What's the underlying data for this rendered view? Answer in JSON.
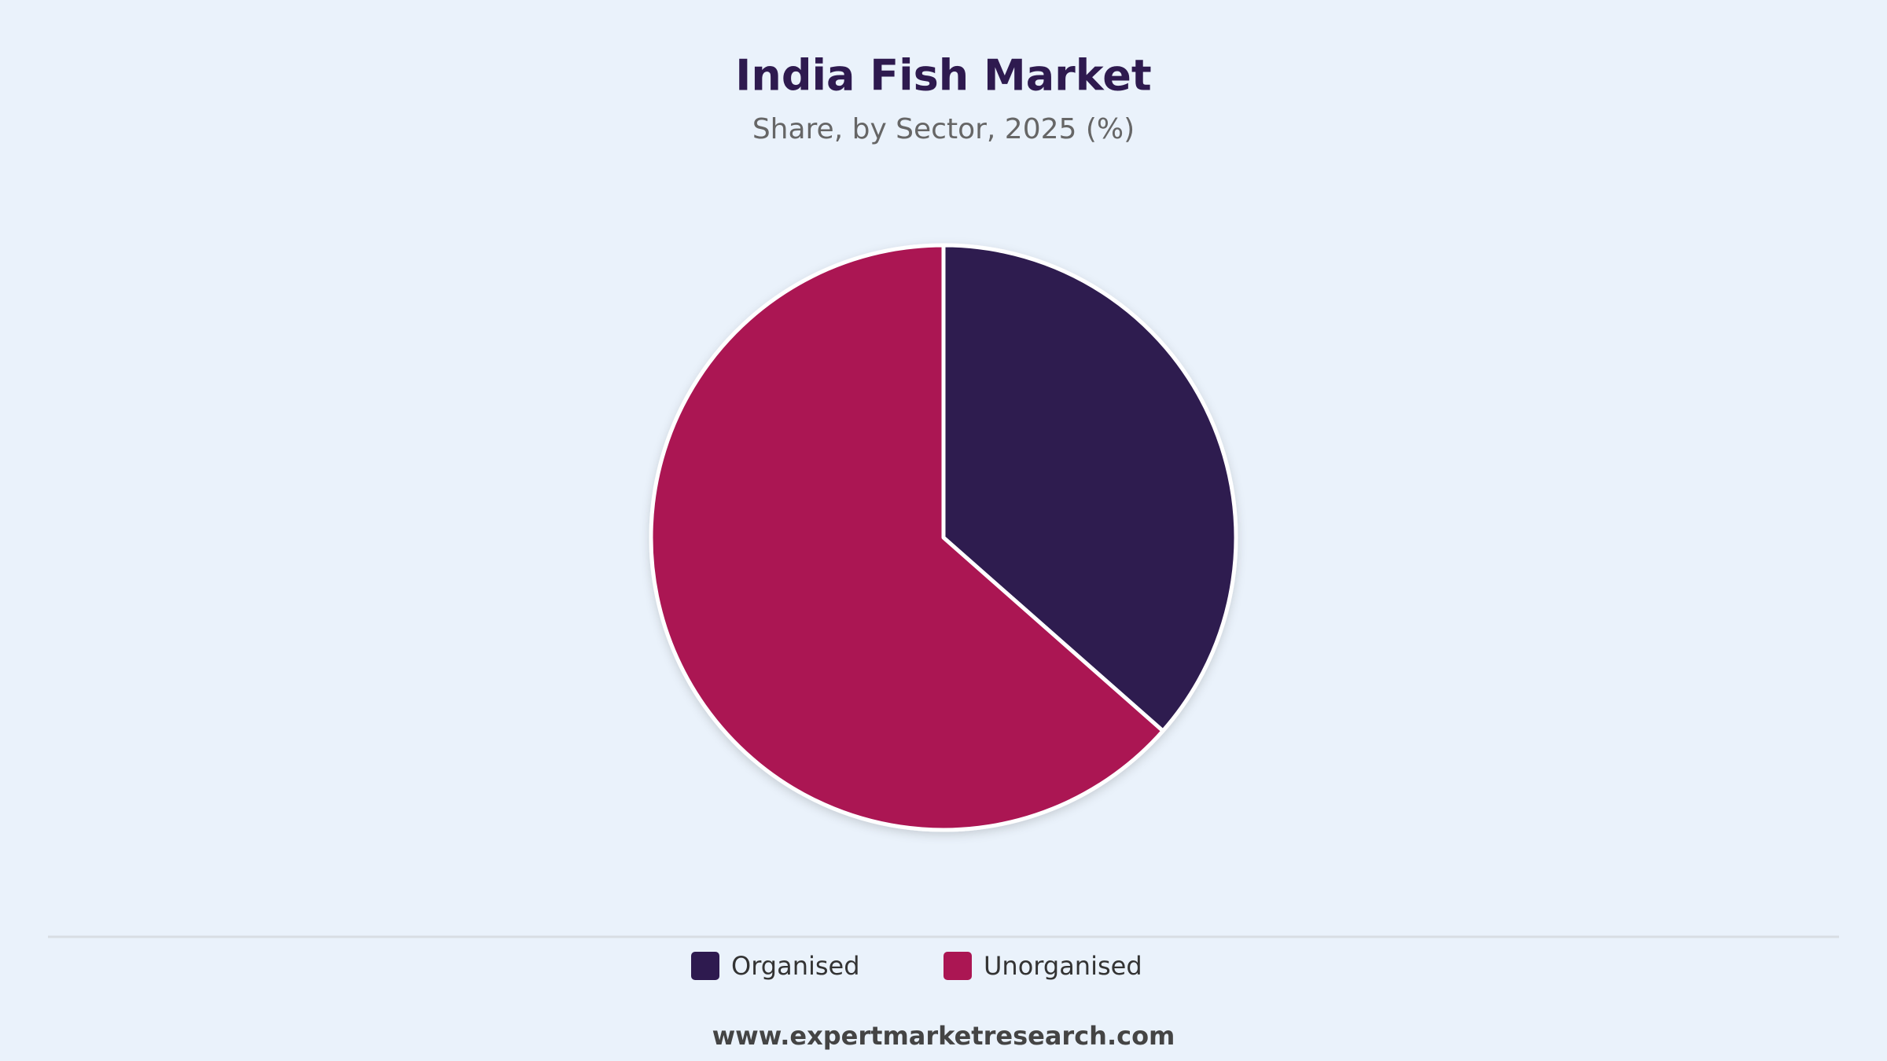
{
  "chart_data": {
    "type": "pie",
    "title": "India Fish Market",
    "subtitle": "Share, by Sector, 2025 (%)",
    "categories": [
      "Organised",
      "Unorganised"
    ],
    "values": [
      36.5,
      63.5
    ],
    "colors": [
      "#2e1a4f",
      "#ab1653"
    ],
    "legend": "bottom",
    "source": "www.expertmarketresearch.com"
  }
}
